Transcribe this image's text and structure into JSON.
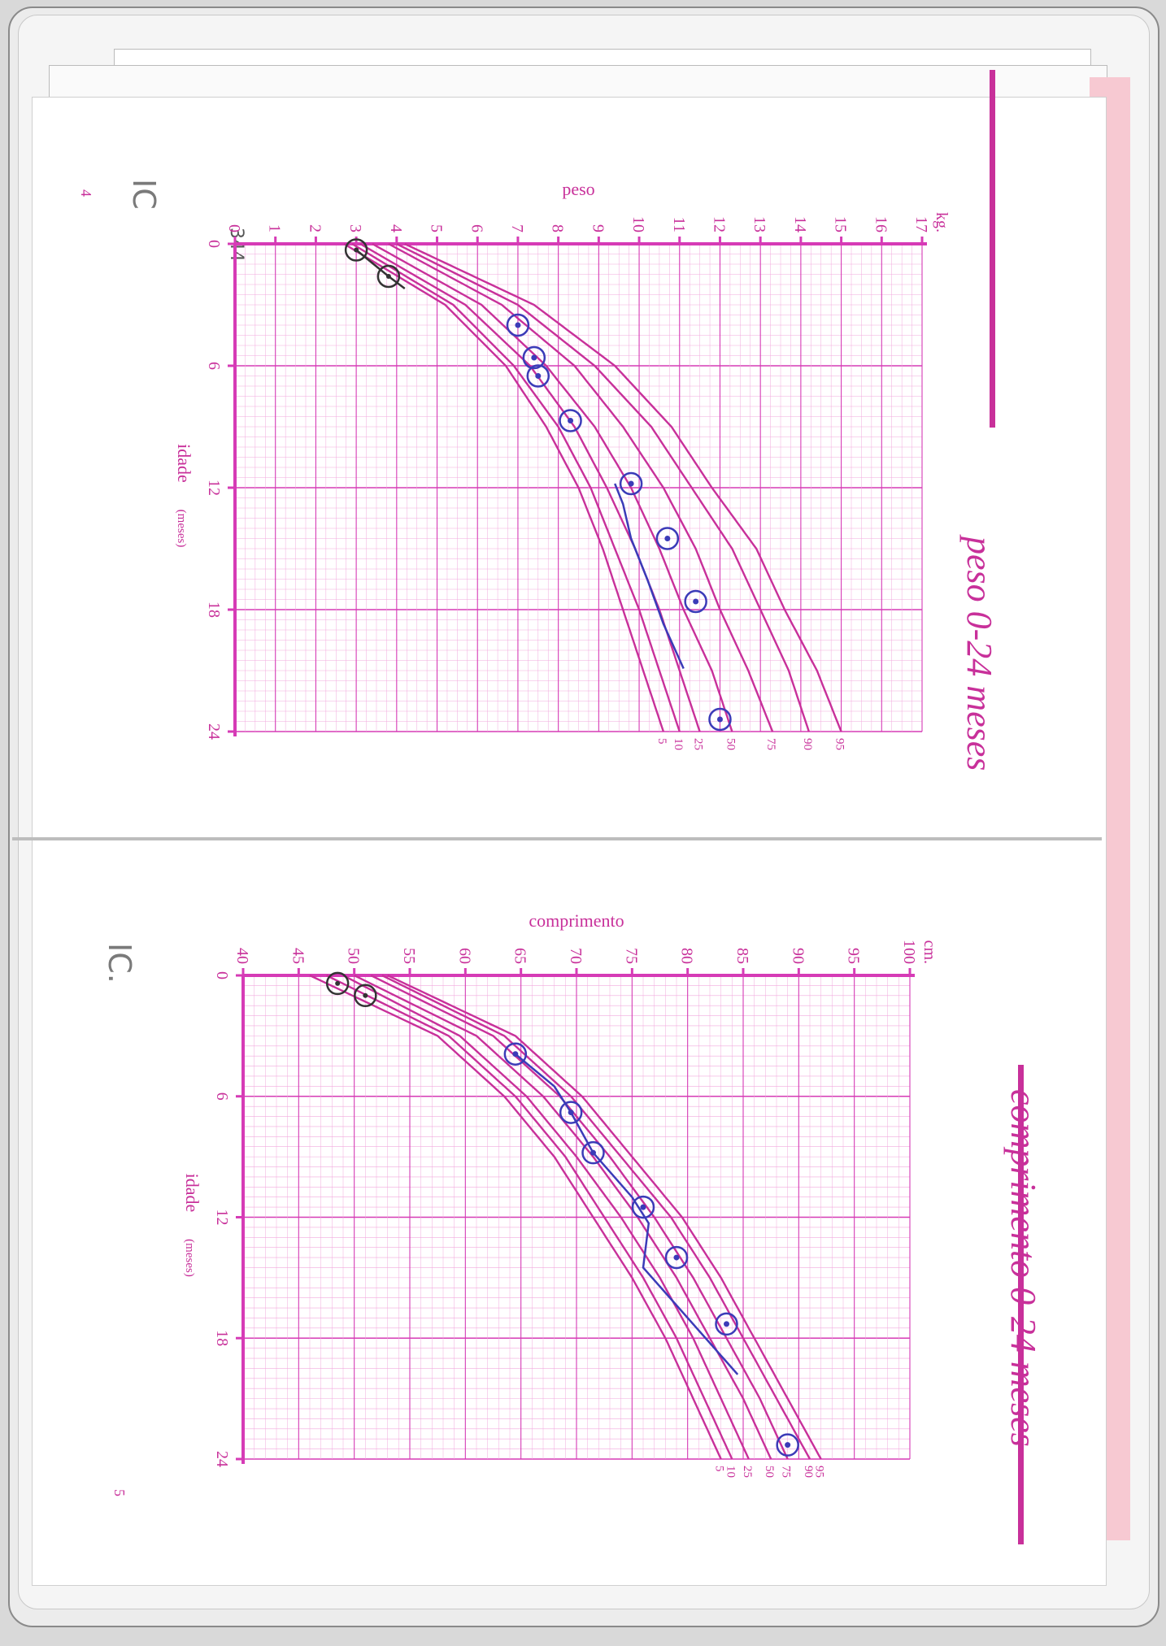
{
  "pages": {
    "left": {
      "title": "peso 0-24 meses",
      "page_number": "4",
      "handwriting": {
        "mark": "IC"
      }
    },
    "right": {
      "title": "comprimento 0-24 meses",
      "page_number": "5",
      "handwriting": {
        "mark": "IC."
      }
    },
    "margin_note": "344"
  },
  "colors": {
    "grid_major": "#d63bb6",
    "grid_minor": "#f2a9dd",
    "curve": "#c8309a",
    "pen": "#3b3bb8",
    "pencil": "#333333"
  },
  "chart_data": [
    {
      "type": "line",
      "title": "peso 0-24 meses",
      "xlabel": "idade",
      "xlabel_unit": "(meses)",
      "ylabel": "peso",
      "y_unit": "kg.",
      "x_ticks": [
        "0",
        "6",
        "12",
        "18",
        "24"
      ],
      "y_ticks": [
        "0",
        "1",
        "2",
        "3",
        "4",
        "5",
        "6",
        "7",
        "8",
        "9",
        "10",
        "11",
        "12",
        "13",
        "14",
        "15",
        "16",
        "17"
      ],
      "xlim": [
        0,
        24
      ],
      "ylim": [
        0,
        17
      ],
      "grid": true,
      "x": [
        0,
        3,
        6,
        9,
        12,
        15,
        18,
        21,
        24
      ],
      "series": [
        {
          "name": "95",
          "values": [
            4.2,
            7.4,
            9.4,
            10.8,
            11.8,
            12.9,
            13.6,
            14.4,
            15.0
          ]
        },
        {
          "name": "90",
          "values": [
            4.0,
            7.0,
            8.9,
            10.3,
            11.3,
            12.3,
            13.0,
            13.7,
            14.2
          ]
        },
        {
          "name": "75",
          "values": [
            3.8,
            6.6,
            8.4,
            9.6,
            10.6,
            11.4,
            12.0,
            12.7,
            13.3
          ]
        },
        {
          "name": "50",
          "values": [
            3.4,
            6.1,
            7.7,
            8.9,
            9.8,
            10.5,
            11.1,
            11.8,
            12.3
          ]
        },
        {
          "name": "25",
          "values": [
            3.1,
            5.7,
            7.3,
            8.4,
            9.2,
            9.9,
            10.5,
            11.0,
            11.5
          ]
        },
        {
          "name": "10",
          "values": [
            2.9,
            5.4,
            6.9,
            8.0,
            8.8,
            9.4,
            10.0,
            10.5,
            11.0
          ]
        },
        {
          "name": "5",
          "values": [
            2.7,
            5.2,
            6.7,
            7.7,
            8.5,
            9.1,
            9.6,
            10.1,
            10.6
          ]
        }
      ],
      "marks_pen": [
        {
          "x": 4.0,
          "y": 7.0
        },
        {
          "x": 5.6,
          "y": 7.4
        },
        {
          "x": 6.5,
          "y": 7.5
        },
        {
          "x": 8.7,
          "y": 8.3
        },
        {
          "x": 11.8,
          "y": 9.8
        },
        {
          "x": 14.5,
          "y": 10.7
        },
        {
          "x": 17.6,
          "y": 11.4
        },
        {
          "x": 23.4,
          "y": 12.0
        }
      ],
      "marks_pencil": [
        {
          "x": 0.3,
          "y": 3.0
        },
        {
          "x": 1.6,
          "y": 3.8
        }
      ],
      "line_pen": [
        [
          11.8,
          9.4
        ],
        [
          12.8,
          9.6
        ],
        [
          14.5,
          9.8
        ],
        [
          16.5,
          10.2
        ],
        [
          18.7,
          10.6
        ],
        [
          20.9,
          11.1
        ]
      ],
      "line_pencil": [
        [
          0.3,
          3.0
        ],
        [
          1.6,
          3.8
        ],
        [
          2.2,
          4.2
        ]
      ]
    },
    {
      "type": "line",
      "title": "comprimento 0-24 meses",
      "xlabel": "idade",
      "xlabel_unit": "(meses)",
      "ylabel": "comprimento",
      "y_unit": "cm.",
      "x_ticks": [
        "0",
        "6",
        "12",
        "18",
        "24"
      ],
      "y_ticks": [
        "40",
        "45",
        "50",
        "55",
        "60",
        "65",
        "70",
        "75",
        "80",
        "85",
        "90",
        "95",
        "100"
      ],
      "xlim": [
        0,
        24
      ],
      "ylim": [
        40,
        100
      ],
      "grid": true,
      "x": [
        0,
        3,
        6,
        9,
        12,
        15,
        18,
        21,
        24
      ],
      "series": [
        {
          "name": "95",
          "values": [
            53.0,
            64.5,
            70.5,
            75.0,
            79.5,
            83.0,
            86.0,
            89.0,
            92.0
          ]
        },
        {
          "name": "90",
          "values": [
            52.5,
            63.5,
            69.5,
            74.0,
            78.5,
            82.0,
            85.0,
            88.0,
            91.0
          ]
        },
        {
          "name": "75",
          "values": [
            51.5,
            62.5,
            68.5,
            73.0,
            77.0,
            80.5,
            83.5,
            86.5,
            89.0
          ]
        },
        {
          "name": "50",
          "values": [
            50.0,
            61.0,
            67.0,
            71.5,
            75.5,
            79.0,
            82.0,
            85.0,
            87.5
          ]
        },
        {
          "name": "25",
          "values": [
            49.0,
            59.5,
            65.5,
            70.0,
            74.0,
            77.5,
            80.5,
            83.0,
            85.5
          ]
        },
        {
          "name": "10",
          "values": [
            47.5,
            58.5,
            64.5,
            69.0,
            72.5,
            76.0,
            79.0,
            81.5,
            84.0
          ]
        },
        {
          "name": "5",
          "values": [
            46.0,
            57.5,
            63.5,
            68.0,
            71.5,
            75.0,
            78.0,
            80.5,
            83.0
          ]
        }
      ],
      "marks_pen": [
        {
          "x": 3.9,
          "y": 64.5
        },
        {
          "x": 6.8,
          "y": 69.5
        },
        {
          "x": 8.8,
          "y": 71.5
        },
        {
          "x": 11.5,
          "y": 76.0
        },
        {
          "x": 14.0,
          "y": 79.0
        },
        {
          "x": 17.3,
          "y": 83.5
        },
        {
          "x": 23.3,
          "y": 89.0
        }
      ],
      "marks_pencil": [
        {
          "x": 0.4,
          "y": 48.5
        },
        {
          "x": 1.0,
          "y": 51.0
        }
      ],
      "line_pen": [
        [
          3.9,
          64.5
        ],
        [
          5.5,
          68.0
        ],
        [
          6.8,
          69.5
        ],
        [
          8.8,
          71.5
        ],
        [
          11.0,
          75.0
        ],
        [
          12.3,
          76.5
        ],
        [
          14.5,
          76.0
        ],
        [
          19.8,
          84.5
        ]
      ]
    }
  ]
}
